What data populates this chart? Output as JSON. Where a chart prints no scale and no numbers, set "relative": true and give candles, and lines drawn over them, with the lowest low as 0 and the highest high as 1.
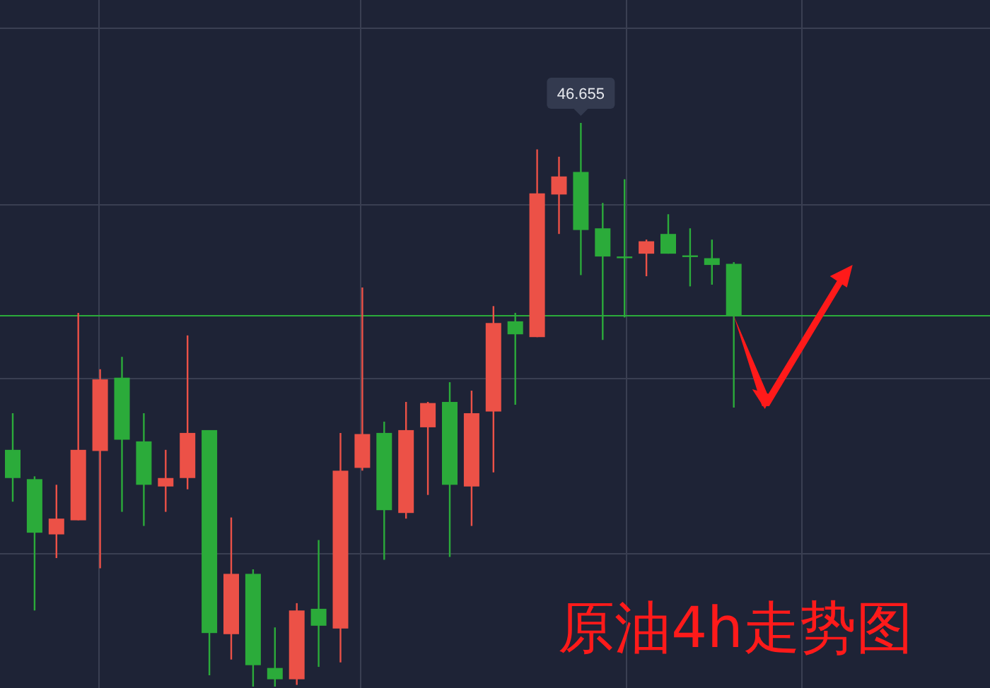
{
  "chart_data": {
    "type": "candlestick",
    "title": "原油4h走势图",
    "relative": true,
    "grid": true,
    "categories": [
      null,
      null,
      null,
      null,
      null,
      null,
      null,
      null,
      null,
      null,
      null,
      null,
      null,
      null,
      null,
      null,
      null,
      null,
      null,
      null,
      null,
      null,
      null,
      null,
      null,
      null,
      null,
      null,
      null,
      null,
      null,
      null,
      null,
      null
    ],
    "ohlc": [
      [
        0.42,
        0.485,
        0.328,
        0.37
      ],
      [
        0.368,
        0.373,
        0.135,
        0.273
      ],
      [
        0.27,
        0.358,
        0.228,
        0.298
      ],
      [
        0.295,
        0.663,
        0.295,
        0.42
      ],
      [
        0.418,
        0.563,
        0.21,
        0.545
      ],
      [
        0.548,
        0.585,
        0.31,
        0.438
      ],
      [
        0.435,
        0.485,
        0.285,
        0.358
      ],
      [
        0.355,
        0.42,
        0.31,
        0.37
      ],
      [
        0.37,
        0.623,
        0.35,
        0.45
      ],
      [
        0.455,
        0.455,
        0.02,
        0.095
      ],
      [
        0.093,
        0.3,
        0.048,
        0.2
      ],
      [
        0.2,
        0.208,
        0,
        0.038
      ],
      [
        0.033,
        0.105,
        0,
        0.013
      ],
      [
        0.013,
        0.148,
        0.003,
        0.135
      ],
      [
        0.138,
        0.26,
        0.035,
        0.108
      ],
      [
        0.103,
        0.45,
        0.043,
        0.383
      ],
      [
        0.388,
        0.708,
        0.383,
        0.448
      ],
      [
        0.45,
        0.47,
        0.225,
        0.313
      ],
      [
        0.308,
        0.505,
        0.298,
        0.455
      ],
      [
        0.46,
        0.505,
        0.34,
        0.503
      ],
      [
        0.505,
        0.54,
        0.23,
        0.358
      ],
      [
        0.355,
        0.525,
        0.285,
        0.485
      ],
      [
        0.488,
        0.675,
        0.38,
        0.645
      ],
      [
        0.648,
        0.663,
        0.5,
        0.625
      ],
      [
        0.62,
        0.953,
        0.62,
        0.875
      ],
      [
        0.873,
        0.94,
        0.803,
        0.905
      ],
      [
        0.913,
        1,
        0.73,
        0.81
      ],
      [
        0.813,
        0.858,
        0.615,
        0.763
      ],
      [
        0.763,
        0.9,
        0.655,
        0.763
      ],
      [
        0.768,
        0.793,
        0.728,
        0.79
      ],
      [
        0.803,
        0.838,
        0.768,
        0.768
      ],
      [
        0.765,
        0.813,
        0.71,
        0.763
      ],
      [
        0.76,
        0.793,
        0.713,
        0.748
      ],
      [
        0.75,
        0.753,
        0.495,
        0.658
      ]
    ],
    "colors": [
      "#2bab3a",
      "#2bab3a",
      "#ec5147",
      "#ec5147",
      "#ec5147",
      "#2bab3a",
      "#2bab3a",
      "#ec5147",
      "#ec5147",
      "#2bab3a",
      "#ec5147",
      "#2bab3a",
      "#2bab3a",
      "#ec5147",
      "#2bab3a",
      "#ec5147",
      "#ec5147",
      "#2bab3a",
      "#ec5147",
      "#ec5147",
      "#2bab3a",
      "#ec5147",
      "#ec5147",
      "#2bab3a",
      "#ec5147",
      "#ec5147",
      "#2bab3a",
      "#2bab3a",
      "#2bab3a",
      "#ec5147",
      "#2bab3a",
      "#2bab3a",
      "#2bab3a",
      "#2bab3a"
    ],
    "ref_lines": [
      {
        "axis": "y",
        "value": 0.658,
        "color": "#2bab3a"
      }
    ],
    "annotations": [
      {
        "text": "46.655",
        "y": 1
      }
    ]
  }
}
